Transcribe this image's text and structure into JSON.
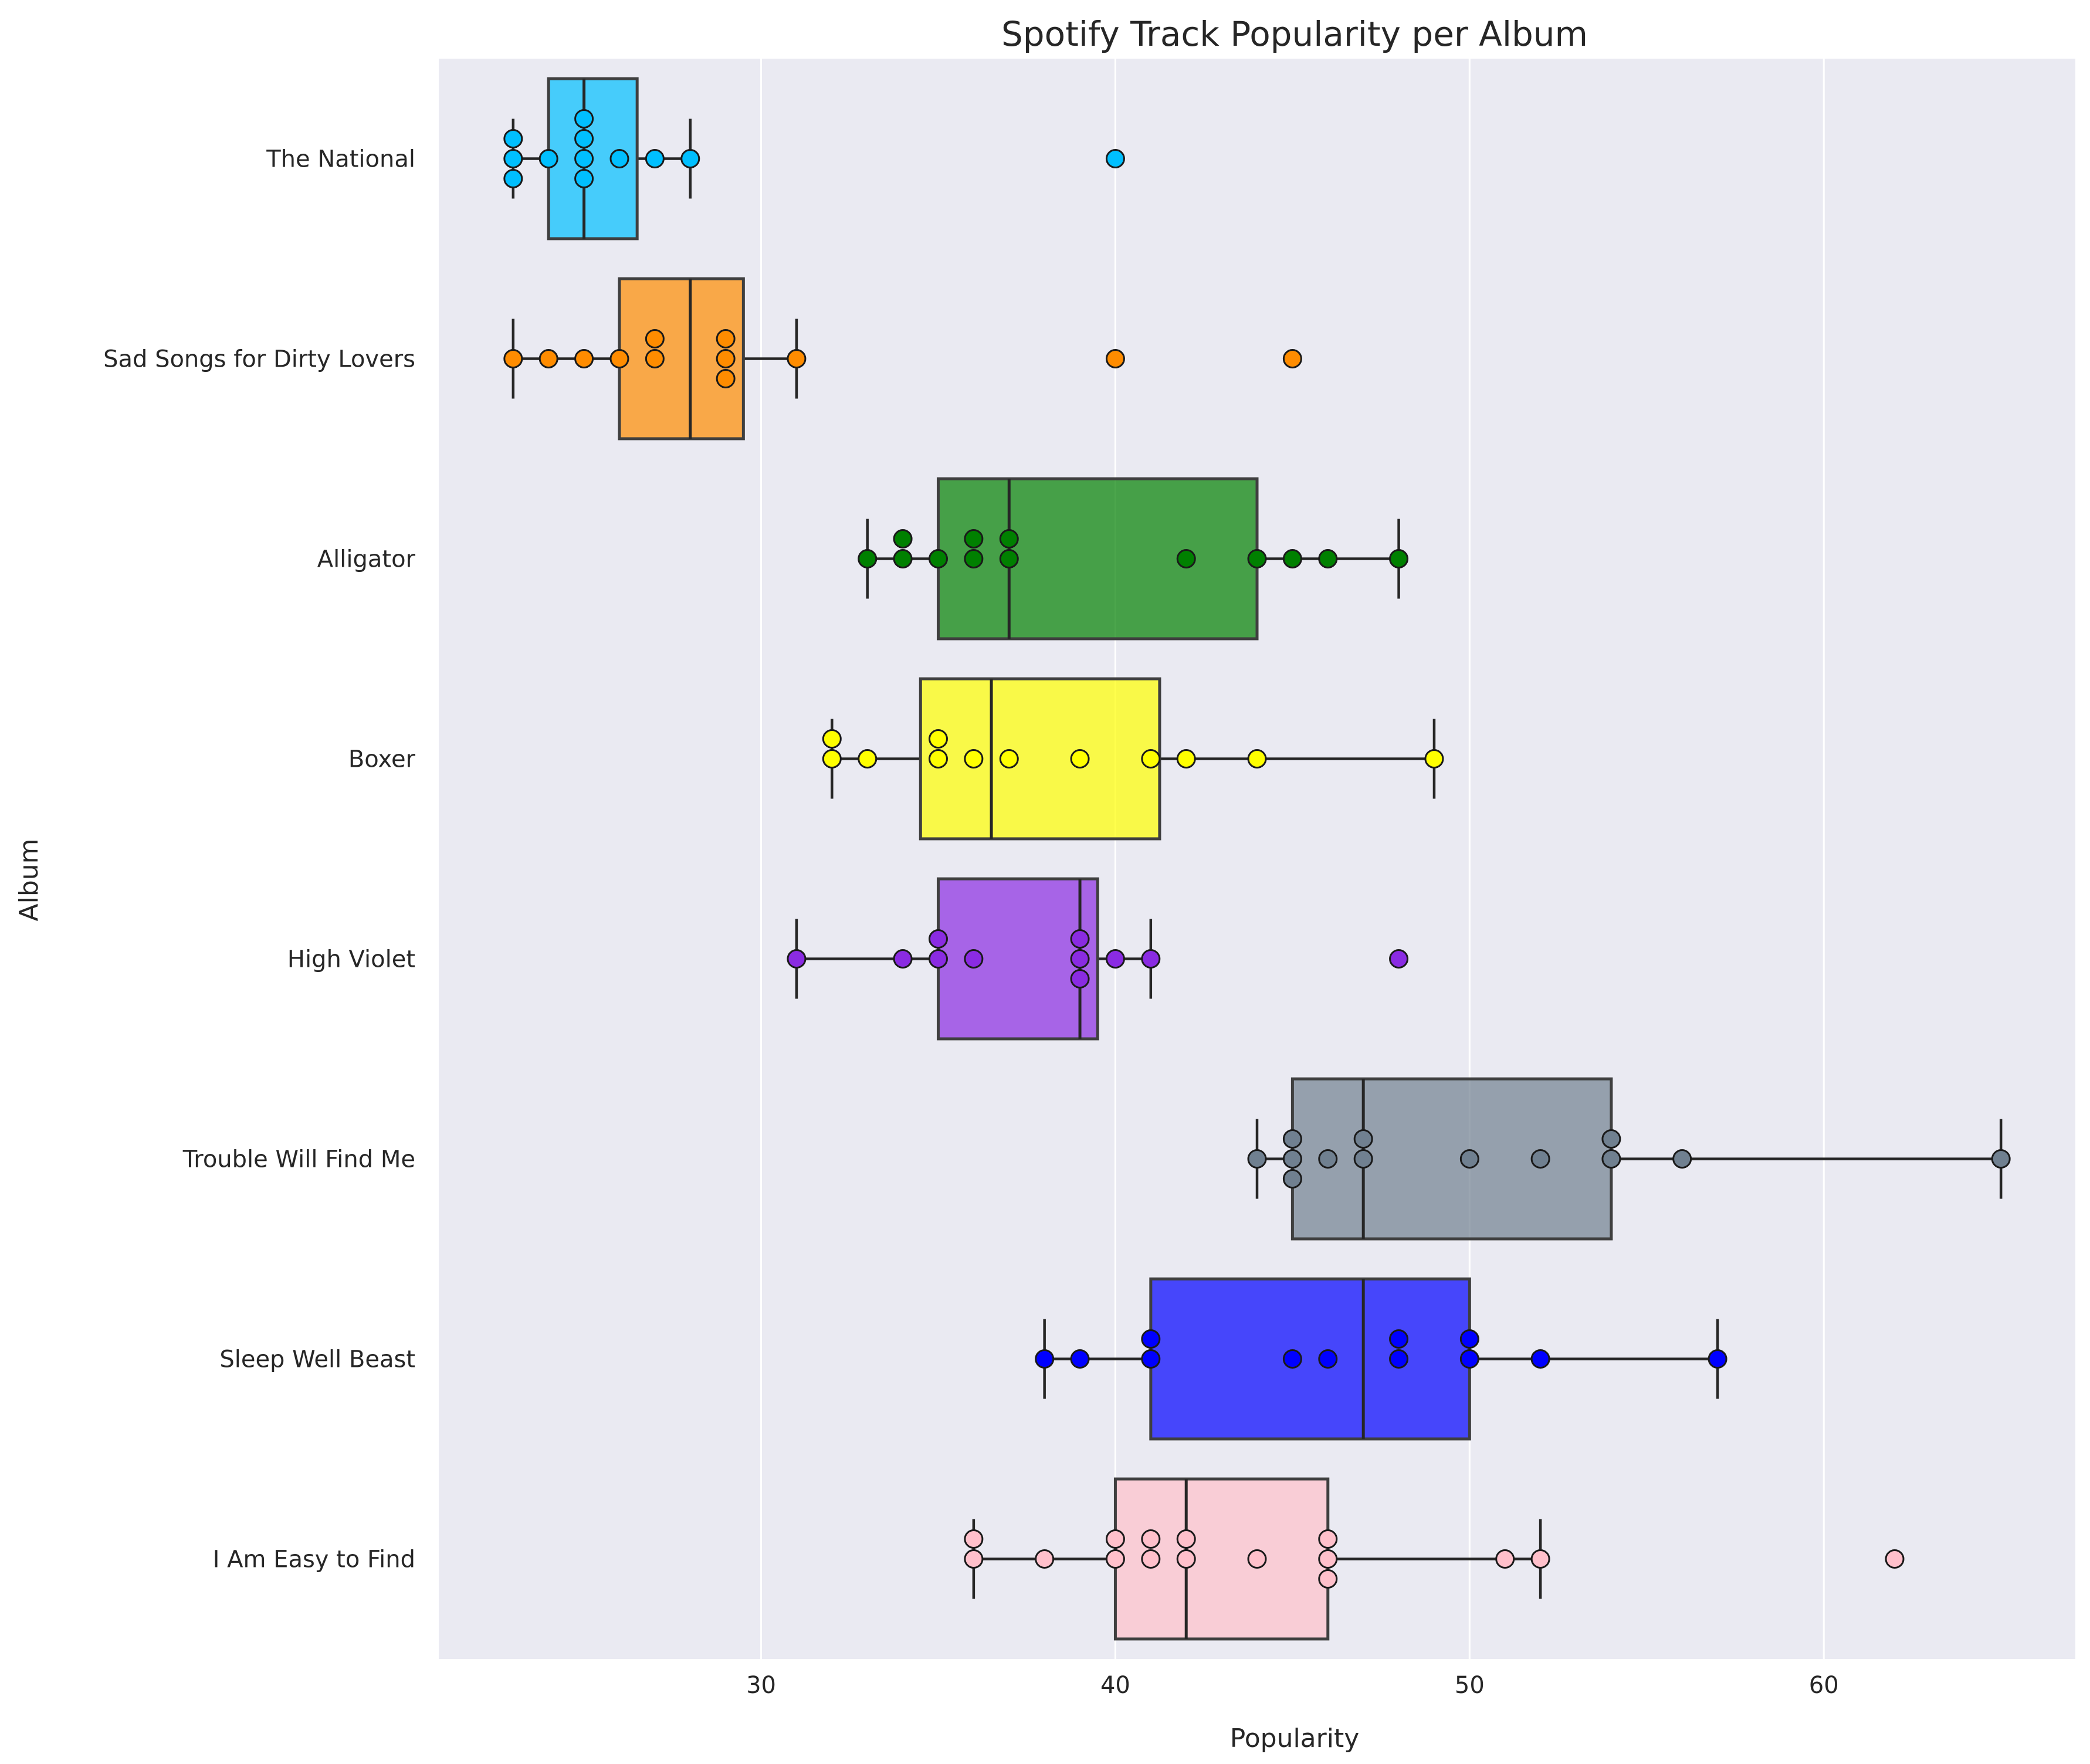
{
  "chart_data": {
    "type": "box",
    "title": "Spotify Track Popularity per Album",
    "xlabel": "Popularity",
    "ylabel": "Album",
    "xlim": [
      20.9,
      67.1
    ],
    "xticks": [
      30,
      40,
      50,
      60
    ],
    "grid": "vertical",
    "orientation": "horizontal",
    "series": [
      {
        "name": "The National",
        "color": "#00BFFF",
        "box": {
          "min": 23,
          "q1": 24,
          "median": 25,
          "q3": 26.5,
          "max": 28
        },
        "points": [
          23,
          23,
          23,
          24,
          25,
          25,
          25,
          25,
          26,
          27,
          28,
          40
        ]
      },
      {
        "name": "Sad Songs for Dirty Lovers",
        "color": "#FF8C00",
        "box": {
          "min": 23,
          "q1": 26,
          "median": 28,
          "q3": 29.5,
          "max": 31
        },
        "points": [
          23,
          24,
          25,
          26,
          27,
          27,
          29,
          29,
          29,
          31,
          40,
          45
        ]
      },
      {
        "name": "Alligator",
        "color": "#008000",
        "box": {
          "min": 33,
          "q1": 35,
          "median": 37,
          "q3": 44,
          "max": 48
        },
        "points": [
          33,
          34,
          34,
          35,
          36,
          36,
          37,
          37,
          42,
          44,
          45,
          46,
          48
        ]
      },
      {
        "name": "Boxer",
        "color": "#FFFF00",
        "box": {
          "min": 32,
          "q1": 34.5,
          "median": 36.5,
          "q3": 41.25,
          "max": 49
        },
        "points": [
          32,
          32,
          33,
          35,
          35,
          36,
          37,
          39,
          41,
          42,
          44,
          49
        ]
      },
      {
        "name": "High Violet",
        "color": "#8A2BE2",
        "box": {
          "min": 31,
          "q1": 35,
          "median": 39,
          "q3": 39.5,
          "max": 41
        },
        "points": [
          31,
          34,
          35,
          35,
          36,
          39,
          39,
          39,
          40,
          41,
          48
        ]
      },
      {
        "name": "Trouble Will Find Me",
        "color": "#708090",
        "box": {
          "min": 44,
          "q1": 45,
          "median": 47,
          "q3": 54,
          "max": 65
        },
        "points": [
          44,
          45,
          45,
          45,
          46,
          47,
          47,
          50,
          52,
          54,
          54,
          56,
          65
        ]
      },
      {
        "name": "Sleep Well Beast",
        "color": "#0000FF",
        "box": {
          "min": 38,
          "q1": 41,
          "median": 47,
          "q3": 50,
          "max": 57
        },
        "points": [
          38,
          39,
          41,
          41,
          45,
          46,
          48,
          48,
          50,
          50,
          52,
          57
        ]
      },
      {
        "name": "I Am Easy to Find",
        "color": "#FFC0CB",
        "box": {
          "min": 36,
          "q1": 40,
          "median": 42,
          "q3": 46,
          "max": 52
        },
        "points": [
          36,
          36,
          38,
          40,
          40,
          41,
          41,
          42,
          42,
          44,
          46,
          46,
          46,
          51,
          52,
          62
        ]
      }
    ]
  }
}
